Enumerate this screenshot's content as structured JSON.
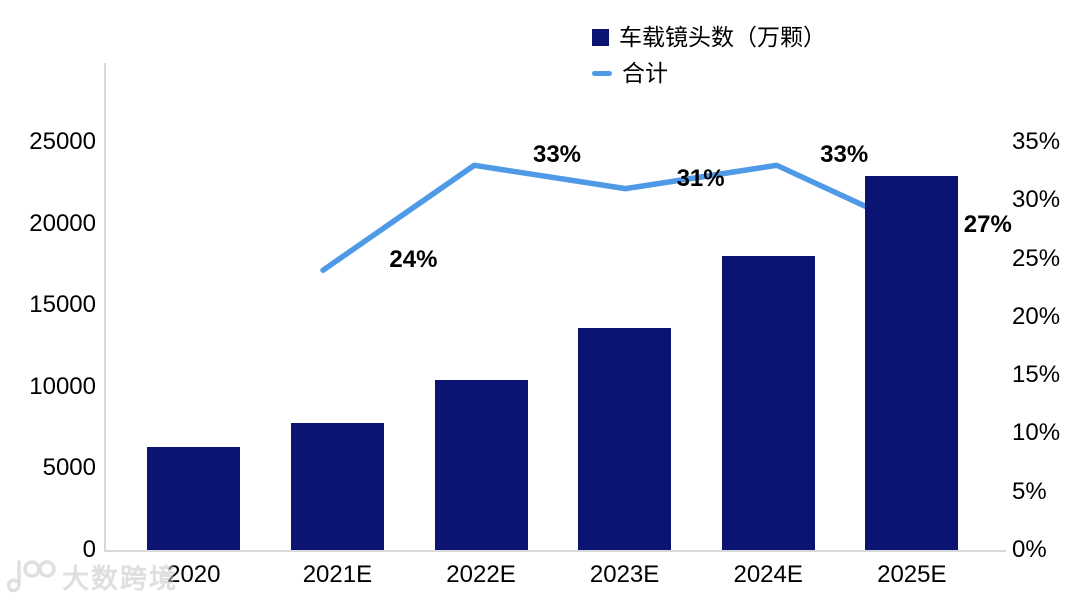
{
  "legend": {
    "items": [
      {
        "label": "车载镜头数（万颗）",
        "swatch": "square",
        "color": "#0B1472"
      },
      {
        "label": "合计",
        "swatch": "line",
        "color": "#4F9AE6"
      }
    ]
  },
  "chart_data": {
    "type": "combo-bar-line",
    "title": "",
    "categories": [
      "2020",
      "2021E",
      "2022E",
      "2023E",
      "2024E",
      "2025E"
    ],
    "series": [
      {
        "name": "车载镜头数（万颗）",
        "kind": "bar",
        "axis": "left",
        "color": "#0B1472",
        "values": [
          6300,
          7800,
          10400,
          13600,
          18000,
          22900
        ]
      },
      {
        "name": "合计",
        "kind": "line",
        "axis": "right",
        "color": "#4F9AE6",
        "values": [
          null,
          24,
          33,
          31,
          33,
          27
        ],
        "point_labels": [
          null,
          "24%",
          "33%",
          "31%",
          "33%",
          "27%"
        ]
      }
    ],
    "left_axis": {
      "min": 0,
      "max": 25000,
      "tick_step": 5000,
      "ticks": [
        "0",
        "5000",
        "10000",
        "15000",
        "20000",
        "25000"
      ]
    },
    "right_axis": {
      "min": 0,
      "max": 35,
      "tick_step": 5,
      "unit": "%",
      "ticks": [
        "0%",
        "5%",
        "10%",
        "15%",
        "20%",
        "25%",
        "30%",
        "35%"
      ]
    },
    "legend_position": "top-center",
    "grid": false,
    "axis_color": "#D9D9D9"
  },
  "watermark": {
    "logo": "100-swirl-logo",
    "text": "大数跨境"
  }
}
